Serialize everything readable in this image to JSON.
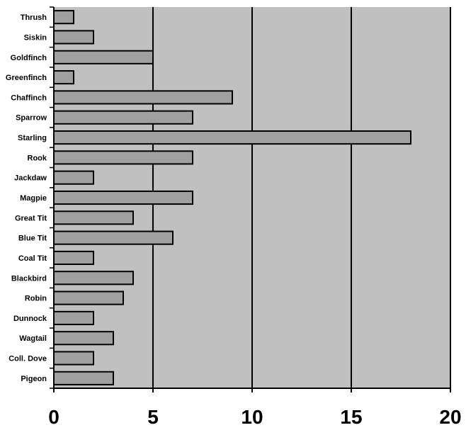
{
  "chart_data": {
    "type": "bar",
    "orientation": "horizontal",
    "title": "",
    "xlabel": "",
    "ylabel": "",
    "categories": [
      "Thrush",
      "Siskin",
      "Goldfinch",
      "Greenfinch",
      "Chaffinch",
      "Sparrow",
      "Starling",
      "Rook",
      "Jackdaw",
      "Magpie",
      "Great Tit",
      "Blue Tit",
      "Coal Tit",
      "Blackbird",
      "Robin",
      "Dunnock",
      "Wagtail",
      "Coll. Dove",
      "Pigeon"
    ],
    "values": [
      1,
      2,
      5,
      1,
      9,
      7,
      18,
      7,
      2,
      7,
      4,
      6,
      2,
      4,
      3.5,
      2,
      3,
      2,
      3
    ],
    "xlim": [
      0,
      20
    ],
    "xticks": [
      0,
      5,
      10,
      15,
      20
    ],
    "grid": "vertical",
    "legend": "none",
    "colors": {
      "plot_background": "#c0c0c0",
      "bar_fill": "#a0a0a0",
      "bar_stroke": "#000000",
      "grid": "#000000"
    }
  }
}
